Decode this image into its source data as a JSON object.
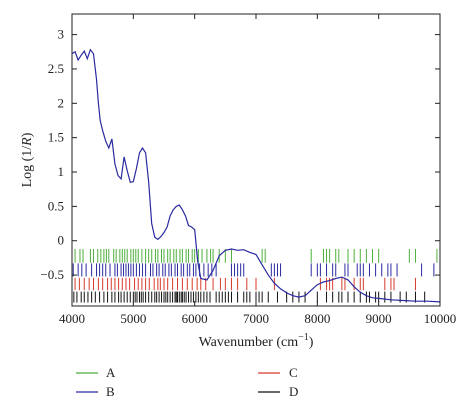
{
  "chart_data": {
    "type": "line",
    "title": "",
    "xlabel": "Wavenumber (cm",
    "xlabel_sup": "−1",
    "xlabel_tail": ")",
    "ylabel": "Log (1/R)",
    "ylabel_italic": "R",
    "xlim": [
      4000,
      10000
    ],
    "ylim": [
      -0.95,
      3.3
    ],
    "x_ticks": [
      4000,
      5000,
      6000,
      7000,
      8000,
      9000,
      10000
    ],
    "y_ticks": [
      3,
      2.5,
      2,
      1.5,
      1,
      0.5,
      0,
      -0.5
    ],
    "y_tick_labels": [
      "3",
      "2.5",
      "2",
      "1.5",
      "1",
      "0.5",
      "0",
      "−0.5"
    ],
    "grid": false,
    "legend_position": "bottom",
    "colors": {
      "A": "#4caf3a",
      "B": "#2a2aa0",
      "C": "#d83a2a",
      "D": "#111111"
    },
    "spectrum": {
      "name": "B",
      "x": [
        4000,
        4050,
        4100,
        4150,
        4200,
        4250,
        4300,
        4350,
        4400,
        4430,
        4460,
        4500,
        4550,
        4600,
        4650,
        4700,
        4750,
        4800,
        4850,
        4900,
        4950,
        5000,
        5050,
        5100,
        5150,
        5200,
        5250,
        5300,
        5350,
        5400,
        5450,
        5500,
        5550,
        5600,
        5650,
        5700,
        5750,
        5800,
        5850,
        5900,
        5950,
        6000,
        6050,
        6100,
        6200,
        6300,
        6400,
        6500,
        6600,
        6700,
        6800,
        6900,
        7000,
        7100,
        7200,
        7300,
        7400,
        7500,
        7600,
        7700,
        7800,
        7900,
        8000,
        8100,
        8200,
        8300,
        8400,
        8500,
        8600,
        8700,
        8800,
        8900,
        9000,
        9200,
        9400,
        9600,
        9800,
        10000
      ],
      "y": [
        2.72,
        2.75,
        2.63,
        2.7,
        2.76,
        2.65,
        2.78,
        2.72,
        2.35,
        2.0,
        1.75,
        1.6,
        1.45,
        1.35,
        1.48,
        1.12,
        0.95,
        0.9,
        1.22,
        1.02,
        0.85,
        0.86,
        1.05,
        1.28,
        1.35,
        1.28,
        0.85,
        0.25,
        0.05,
        0.02,
        0.06,
        0.12,
        0.2,
        0.36,
        0.45,
        0.5,
        0.52,
        0.45,
        0.36,
        0.22,
        0.2,
        0.16,
        -0.3,
        -0.55,
        -0.57,
        -0.43,
        -0.22,
        -0.14,
        -0.12,
        -0.14,
        -0.13,
        -0.17,
        -0.2,
        -0.35,
        -0.5,
        -0.62,
        -0.7,
        -0.76,
        -0.8,
        -0.82,
        -0.8,
        -0.72,
        -0.64,
        -0.6,
        -0.58,
        -0.55,
        -0.53,
        -0.57,
        -0.67,
        -0.75,
        -0.8,
        -0.83,
        -0.84,
        -0.86,
        -0.87,
        -0.88,
        -0.88,
        -0.89
      ]
    },
    "band_rows": [
      {
        "name": "A",
        "y_range": [
          -0.32,
          -0.12
        ],
        "x": [
          4050,
          4130,
          4180,
          4300,
          4350,
          4420,
          4470,
          4520,
          4560,
          4600,
          4680,
          4720,
          4780,
          4820,
          4860,
          4900,
          4960,
          5000,
          5040,
          5080,
          5140,
          5200,
          5250,
          5300,
          5360,
          5400,
          5460,
          5500,
          5560,
          5600,
          5660,
          5700,
          5760,
          5800,
          5860,
          5900,
          5960,
          6000,
          6060,
          6120,
          6200,
          6260,
          6300,
          6400,
          6500,
          6600,
          7100,
          7150,
          7900,
          8100,
          8150,
          8200,
          8300,
          8350,
          8500,
          8600,
          8700,
          8800,
          8900,
          9000,
          9500,
          9600,
          9950
        ]
      },
      {
        "name": "B",
        "y_range": [
          -0.52,
          -0.33
        ],
        "x": [
          4020,
          4100,
          4160,
          4230,
          4320,
          4400,
          4450,
          4500,
          4550,
          4620,
          4700,
          4740,
          4800,
          4840,
          4880,
          4920,
          4960,
          5000,
          5050,
          5100,
          5150,
          5200,
          5280,
          5320,
          5380,
          5420,
          5480,
          5520,
          5580,
          5620,
          5680,
          5720,
          5780,
          5820,
          5880,
          5920,
          5980,
          6020,
          6080,
          6150,
          6220,
          6280,
          6350,
          6600,
          6650,
          6700,
          6750,
          6800,
          7250,
          7300,
          7350,
          7400,
          7900,
          8000,
          8050,
          8150,
          8250,
          8300,
          8450,
          8500,
          8650,
          8700,
          8750,
          8850,
          8950,
          9050,
          9150,
          9200,
          9300,
          9700,
          9900
        ]
      },
      {
        "name": "C",
        "y_range": [
          -0.72,
          -0.54
        ],
        "x": [
          4050,
          4120,
          4200,
          4280,
          4350,
          4430,
          4500,
          4580,
          4640,
          4700,
          4760,
          4820,
          4880,
          4940,
          5020,
          5080,
          5140,
          5200,
          5260,
          5340,
          5400,
          5440,
          5500,
          5560,
          5640,
          5720,
          5800,
          5880,
          5960,
          6040,
          6100,
          6180,
          6300,
          6420,
          6500,
          6600,
          6700,
          6850,
          7000,
          7300,
          8050,
          8150,
          8200,
          8250,
          8400,
          8450,
          8600,
          8700,
          8750,
          9100,
          9200,
          9250,
          9600
        ]
      },
      {
        "name": "D",
        "y_range": [
          -0.9,
          -0.74
        ],
        "x": [
          4030,
          4080,
          4150,
          4200,
          4260,
          4320,
          4380,
          4450,
          4520,
          4580,
          4650,
          4700,
          4760,
          4800,
          4850,
          4900,
          4950,
          5000,
          5030,
          5060,
          5100,
          5130,
          5160,
          5200,
          5250,
          5300,
          5350,
          5380,
          5420,
          5460,
          5500,
          5530,
          5560,
          5600,
          5640,
          5680,
          5700,
          5720,
          5750,
          5780,
          5800,
          5830,
          5860,
          5900,
          5940,
          5980,
          6020,
          6060,
          6100,
          6150,
          6200,
          6250,
          6350,
          6400,
          6450,
          6500,
          6550,
          6600,
          6700,
          6800,
          6850,
          6900,
          7000,
          7050,
          7100,
          7200,
          7350,
          7500,
          7600,
          7700,
          7800,
          8000,
          8150,
          8250,
          8350,
          8400,
          8500,
          8600,
          8700,
          8800,
          8850,
          8950,
          9000,
          9100,
          9200,
          9350,
          9450,
          9600,
          9750
        ]
      }
    ],
    "legend": [
      {
        "label": "A",
        "color": "#4caf3a"
      },
      {
        "label": "B",
        "color": "#2a2aa0"
      },
      {
        "label": "C",
        "color": "#d83a2a"
      },
      {
        "label": "D",
        "color": "#111111"
      }
    ]
  }
}
